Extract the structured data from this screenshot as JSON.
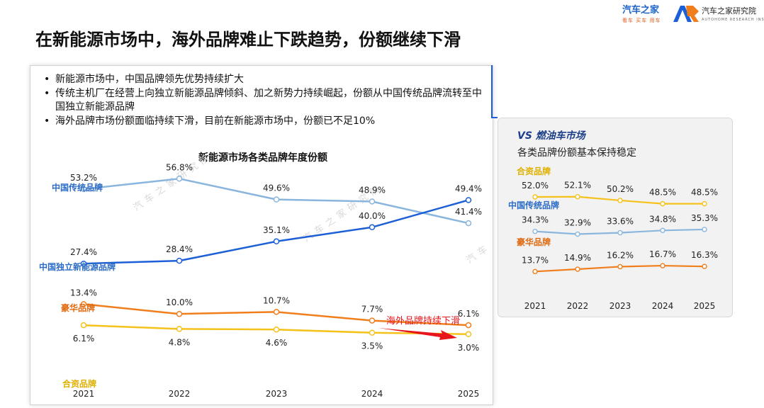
{
  "page": {
    "title": "在新能源市场中，海外品牌难止下跌趋势，份额继续下滑",
    "logo_autohome": "汽车之家",
    "logo_autohome_sub": "看车 买车 用车",
    "logo_institute": "汽车之家研究院",
    "logo_institute_sub": "AUTOHOME RESEARCH INSTITUTE",
    "watermark": "汽车之家研究院",
    "watermark_short": "汽车"
  },
  "bullets": [
    "新能源市场中，中国品牌领先优势持续扩大",
    "传统主机厂在经营上向独立新能源品牌倾斜、加之新势力持续崛起，份额从中国传统品牌流转至中国独立新能源品牌",
    "海外品牌市场份额面临持续下滑，目前在新能源市场中，份额已不足10%"
  ],
  "comparison": {
    "title": "VS 燃油车市场",
    "subtitle": "各类品牌份额基本保持稳定"
  },
  "colors": {
    "traditional": "#8ab6de",
    "independent": "#1d5fd6",
    "luxury": "#f07e1c",
    "jv": "#f5c21b",
    "series_label_blue": "#2d6cc5",
    "luxury_label": "#e06a10",
    "jv_label": "#e0b000",
    "annotation": "#e8141c"
  },
  "chart_data": [
    {
      "type": "line",
      "title": "新能源市场各类品牌年度份额",
      "categories": [
        "2021",
        "2022",
        "2023",
        "2024",
        "2025"
      ],
      "series": [
        {
          "name": "中国传统品牌",
          "key": "traditional",
          "values": [
            53.2,
            56.8,
            49.6,
            48.9,
            41.4
          ],
          "labels": [
            "53.2%",
            "56.8%",
            "49.6%",
            "48.9%",
            "41.4%"
          ]
        },
        {
          "name": "中国独立新能源品牌",
          "key": "independent",
          "values": [
            27.4,
            28.4,
            35.1,
            40.0,
            49.4
          ],
          "labels": [
            "27.4%",
            "28.4%",
            "35.1%",
            "40.0%",
            "49.4%"
          ]
        },
        {
          "name": "豪华品牌",
          "key": "luxury",
          "values": [
            13.4,
            10.0,
            10.7,
            7.7,
            6.1
          ],
          "labels": [
            "13.4%",
            "10.0%",
            "10.7%",
            "7.7%",
            "6.1%"
          ]
        },
        {
          "name": "合资品牌",
          "key": "jv",
          "values": [
            6.1,
            4.8,
            4.6,
            3.5,
            3.0
          ],
          "labels": [
            "6.1%",
            "4.8%",
            "4.6%",
            "3.5%",
            "3.0%"
          ]
        }
      ],
      "annotations": [
        {
          "text": "海外品牌持续下滑"
        }
      ]
    },
    {
      "type": "line",
      "title": "",
      "categories": [
        "2021",
        "2022",
        "2023",
        "2024",
        "2025"
      ],
      "series": [
        {
          "name": "合资品牌",
          "key": "jv",
          "values": [
            52.0,
            52.1,
            50.2,
            48.5,
            48.5
          ],
          "labels": [
            "52.0%",
            "52.1%",
            "50.2%",
            "48.5%",
            "48.5%"
          ]
        },
        {
          "name": "中国传统品牌",
          "key": "traditional",
          "values": [
            34.3,
            32.9,
            33.6,
            34.8,
            35.3
          ],
          "labels": [
            "34.3%",
            "32.9%",
            "33.6%",
            "34.8%",
            "35.3%"
          ]
        },
        {
          "name": "豪华品牌",
          "key": "luxury",
          "values": [
            13.7,
            14.9,
            16.2,
            16.7,
            16.3
          ],
          "labels": [
            "13.7%",
            "14.9%",
            "16.2%",
            "16.7%",
            "16.3%"
          ]
        }
      ]
    }
  ]
}
